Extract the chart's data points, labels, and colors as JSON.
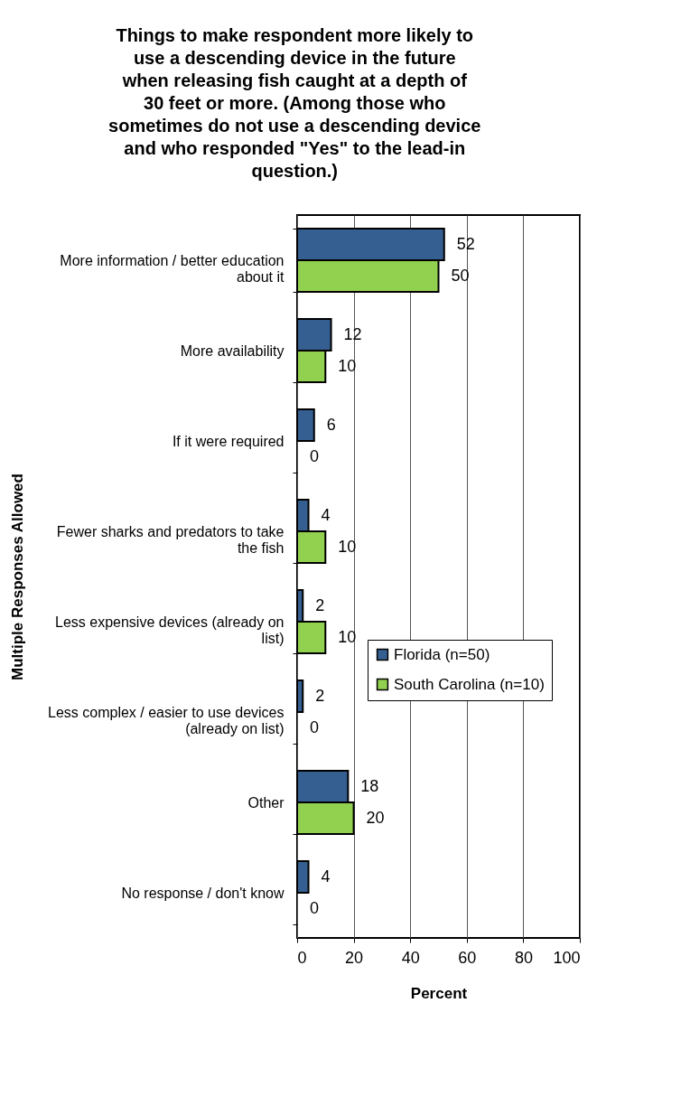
{
  "chart_data": {
    "type": "bar",
    "orientation": "horizontal",
    "title": "Things to make respondent more likely to use a descending device in the future when releasing fish caught at a depth of 30 feet or more. (Among those who sometimes do not use a descending device and who responded \"Yes\" to the lead-in question.)",
    "xlabel": "Percent",
    "ylabel": "Multiple Responses Allowed",
    "categories": [
      "More information / better education about it",
      "More availability",
      "If it were required",
      "Fewer sharks and predators to take the fish",
      "Less expensive devices (already on list)",
      "Less complex / easier to use devices (already on list)",
      "Other",
      "No response / don't know"
    ],
    "series": [
      {
        "name": "Florida (n=50)",
        "color": "#355f91",
        "values": [
          52,
          12,
          6,
          4,
          2,
          2,
          18,
          4
        ]
      },
      {
        "name": "South Carolina (n=10)",
        "color": "#92d050",
        "values": [
          50,
          10,
          0,
          10,
          10,
          0,
          20,
          0
        ]
      }
    ],
    "xlim": [
      0,
      100
    ],
    "xticks": [
      0,
      20,
      40,
      60,
      80,
      100
    ],
    "grid": "x",
    "legend": "right",
    "data_labels": true
  }
}
